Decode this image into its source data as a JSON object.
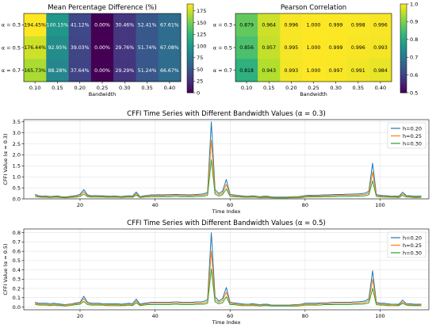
{
  "chart_data": [
    {
      "type": "heatmap",
      "title": "Mean Percentage Difference (%)",
      "xlabel": "Bandwidth",
      "ylabel": "",
      "x_categories": [
        "0.10",
        "0.15",
        "0.20",
        "0.25",
        "0.30",
        "0.35",
        "0.40"
      ],
      "y_categories": [
        "α = 0.3",
        "α = 0.5",
        "α = 0.7"
      ],
      "values": [
        [
          194.45,
          100.15,
          41.12,
          0.0,
          30.46,
          52.41,
          67.61
        ],
        [
          176.44,
          92.95,
          39.03,
          0.0,
          29.76,
          51.74,
          67.08
        ],
        [
          165.73,
          88.28,
          37.64,
          0.0,
          29.29,
          51.24,
          66.67
        ]
      ],
      "cell_labels": [
        [
          "194.45%",
          "100.15%",
          "41.12%",
          "0.00%",
          "30.46%",
          "52.41%",
          "67.61%"
        ],
        [
          "176.44%",
          "92.95%",
          "39.03%",
          "0.00%",
          "29.76%",
          "51.74%",
          "67.08%"
        ],
        [
          "165.73%",
          "88.28%",
          "37.64%",
          "0.00%",
          "29.29%",
          "51.24%",
          "66.67%"
        ]
      ],
      "colorbar": {
        "range": [
          0,
          190
        ],
        "ticks": [
          "0",
          "25",
          "50",
          "75",
          "100",
          "125",
          "150",
          "175"
        ]
      },
      "colormap": "viridis"
    },
    {
      "type": "heatmap",
      "title": "Pearson Correlation",
      "xlabel": "Bandwidth",
      "ylabel": "",
      "x_categories": [
        "0.10",
        "0.15",
        "0.20",
        "0.25",
        "0.30",
        "0.35",
        "0.40"
      ],
      "y_categories": [
        "α = 0.3",
        "α = 0.5",
        "α = 0.7"
      ],
      "values": [
        [
          0.879,
          0.964,
          0.996,
          1.0,
          0.999,
          0.998,
          0.996
        ],
        [
          0.856,
          0.957,
          0.995,
          1.0,
          0.999,
          0.996,
          0.993
        ],
        [
          0.818,
          0.943,
          0.993,
          1.0,
          0.997,
          0.991,
          0.984
        ]
      ],
      "cell_labels": [
        [
          "0.879",
          "0.964",
          "0.996",
          "1.000",
          "0.999",
          "0.998",
          "0.996"
        ],
        [
          "0.856",
          "0.957",
          "0.995",
          "1.000",
          "0.999",
          "0.996",
          "0.993"
        ],
        [
          "0.818",
          "0.943",
          "0.993",
          "1.000",
          "0.997",
          "0.991",
          "0.984"
        ]
      ],
      "colorbar": {
        "range": [
          0.5,
          1.0
        ],
        "ticks": [
          "0.5",
          "0.6",
          "0.7",
          "0.8",
          "0.9",
          "1.0"
        ]
      },
      "colormap": "viridis"
    },
    {
      "type": "line",
      "title": "CFFI Time Series with Different Bandwidth Values (α = 0.3)",
      "xlabel": "Time Index",
      "ylabel": "CFFI Value (α = 0.3)",
      "xlim": [
        5,
        113
      ],
      "ylim": [
        0,
        3.6
      ],
      "x_ticks": [
        20,
        40,
        60,
        80,
        100
      ],
      "y_ticks": [
        0.0,
        0.5,
        1.0,
        1.5,
        2.0,
        2.5,
        3.0,
        3.5
      ],
      "x": [
        8,
        9,
        10,
        11,
        12,
        13,
        14,
        15,
        16,
        17,
        18,
        19,
        20,
        21,
        22,
        23,
        24,
        25,
        26,
        27,
        28,
        29,
        30,
        31,
        32,
        33,
        34,
        35,
        36,
        37,
        38,
        39,
        40,
        41,
        42,
        43,
        44,
        45,
        46,
        47,
        48,
        49,
        50,
        51,
        52,
        53,
        54,
        55,
        56,
        57,
        58,
        59,
        60,
        61,
        62,
        63,
        64,
        65,
        66,
        67,
        68,
        69,
        70,
        71,
        72,
        73,
        74,
        75,
        76,
        77,
        78,
        79,
        80,
        81,
        82,
        83,
        84,
        85,
        86,
        87,
        88,
        89,
        90,
        91,
        92,
        93,
        94,
        95,
        96,
        97,
        98,
        99,
        100,
        101,
        102,
        103,
        104,
        105,
        106,
        107,
        108,
        109,
        110,
        111
      ],
      "legend": "top-right",
      "series": [
        {
          "name": "h=0.20",
          "color": "#1f77b4",
          "values": [
            0.2,
            0.14,
            0.12,
            0.13,
            0.11,
            0.12,
            0.13,
            0.1,
            0.09,
            0.11,
            0.13,
            0.15,
            0.21,
            0.42,
            0.18,
            0.14,
            0.15,
            0.14,
            0.14,
            0.13,
            0.12,
            0.13,
            0.12,
            0.11,
            0.13,
            0.14,
            0.13,
            0.31,
            0.1,
            0.14,
            0.16,
            0.18,
            0.18,
            0.19,
            0.18,
            0.19,
            0.19,
            0.2,
            0.2,
            0.19,
            0.19,
            0.18,
            0.19,
            0.2,
            0.21,
            0.23,
            0.3,
            3.5,
            0.42,
            0.25,
            0.35,
            0.88,
            0.2,
            0.18,
            0.16,
            0.14,
            0.12,
            0.12,
            0.14,
            0.12,
            0.1,
            0.12,
            0.12,
            0.09,
            0.08,
            0.08,
            0.08,
            0.08,
            0.09,
            0.1,
            0.1,
            0.12,
            0.15,
            0.16,
            0.16,
            0.16,
            0.17,
            0.18,
            0.18,
            0.19,
            0.2,
            0.2,
            0.2,
            0.21,
            0.21,
            0.22,
            0.22,
            0.24,
            0.26,
            0.35,
            1.62,
            0.2,
            0.16,
            0.15,
            0.14,
            0.12,
            0.13,
            0.12,
            0.3,
            0.15,
            0.14,
            0.12,
            0.12,
            0.13
          ]
        },
        {
          "name": "h=0.25",
          "color": "#ff7f0e",
          "values": [
            0.16,
            0.11,
            0.1,
            0.1,
            0.09,
            0.1,
            0.1,
            0.08,
            0.07,
            0.09,
            0.1,
            0.12,
            0.16,
            0.32,
            0.14,
            0.11,
            0.12,
            0.11,
            0.11,
            0.1,
            0.1,
            0.1,
            0.1,
            0.09,
            0.1,
            0.11,
            0.1,
            0.24,
            0.08,
            0.11,
            0.13,
            0.14,
            0.14,
            0.15,
            0.14,
            0.15,
            0.15,
            0.16,
            0.16,
            0.15,
            0.15,
            0.14,
            0.15,
            0.16,
            0.16,
            0.18,
            0.23,
            2.65,
            0.32,
            0.19,
            0.27,
            0.66,
            0.16,
            0.14,
            0.13,
            0.11,
            0.1,
            0.1,
            0.11,
            0.1,
            0.08,
            0.09,
            0.09,
            0.07,
            0.06,
            0.06,
            0.06,
            0.06,
            0.07,
            0.08,
            0.08,
            0.09,
            0.12,
            0.12,
            0.13,
            0.13,
            0.13,
            0.14,
            0.14,
            0.15,
            0.15,
            0.16,
            0.16,
            0.16,
            0.16,
            0.17,
            0.17,
            0.19,
            0.2,
            0.27,
            1.22,
            0.16,
            0.12,
            0.12,
            0.11,
            0.1,
            0.1,
            0.09,
            0.23,
            0.12,
            0.11,
            0.09,
            0.09,
            0.1
          ]
        },
        {
          "name": "h=0.30",
          "color": "#2ca02c",
          "values": [
            0.11,
            0.08,
            0.07,
            0.07,
            0.06,
            0.07,
            0.07,
            0.06,
            0.05,
            0.06,
            0.07,
            0.08,
            0.11,
            0.22,
            0.1,
            0.08,
            0.08,
            0.08,
            0.08,
            0.07,
            0.07,
            0.07,
            0.07,
            0.06,
            0.07,
            0.08,
            0.07,
            0.17,
            0.06,
            0.08,
            0.09,
            0.1,
            0.1,
            0.1,
            0.1,
            0.1,
            0.1,
            0.11,
            0.11,
            0.1,
            0.1,
            0.1,
            0.1,
            0.11,
            0.11,
            0.12,
            0.16,
            1.78,
            0.22,
            0.13,
            0.19,
            0.45,
            0.11,
            0.1,
            0.09,
            0.08,
            0.07,
            0.07,
            0.08,
            0.07,
            0.05,
            0.06,
            0.06,
            0.05,
            0.04,
            0.04,
            0.04,
            0.04,
            0.05,
            0.05,
            0.05,
            0.06,
            0.08,
            0.09,
            0.09,
            0.09,
            0.09,
            0.1,
            0.1,
            0.1,
            0.11,
            0.11,
            0.11,
            0.11,
            0.11,
            0.12,
            0.12,
            0.13,
            0.14,
            0.19,
            0.82,
            0.11,
            0.09,
            0.08,
            0.08,
            0.07,
            0.07,
            0.06,
            0.16,
            0.08,
            0.08,
            0.06,
            0.06,
            0.07
          ]
        }
      ]
    },
    {
      "type": "line",
      "title": "CFFI Time Series with Different Bandwidth Values (α = 0.5)",
      "xlabel": "Time Index",
      "ylabel": "CFFI Value (α = 0.5)",
      "xlim": [
        5,
        113
      ],
      "ylim": [
        -0.03,
        0.84
      ],
      "x_ticks": [
        20,
        40,
        60,
        80,
        100
      ],
      "y_ticks": [
        0.0,
        0.1,
        0.2,
        0.3,
        0.4,
        0.5,
        0.6,
        0.7,
        0.8
      ],
      "x": [
        8,
        9,
        10,
        11,
        12,
        13,
        14,
        15,
        16,
        17,
        18,
        19,
        20,
        21,
        22,
        23,
        24,
        25,
        26,
        27,
        28,
        29,
        30,
        31,
        32,
        33,
        34,
        35,
        36,
        37,
        38,
        39,
        40,
        41,
        42,
        43,
        44,
        45,
        46,
        47,
        48,
        49,
        50,
        51,
        52,
        53,
        54,
        55,
        56,
        57,
        58,
        59,
        60,
        61,
        62,
        63,
        64,
        65,
        66,
        67,
        68,
        69,
        70,
        71,
        72,
        73,
        74,
        75,
        76,
        77,
        78,
        79,
        80,
        81,
        82,
        83,
        84,
        85,
        86,
        87,
        88,
        89,
        90,
        91,
        92,
        93,
        94,
        95,
        96,
        97,
        98,
        99,
        100,
        101,
        102,
        103,
        104,
        105,
        106,
        107,
        108,
        109,
        110,
        111
      ],
      "legend": "top-right",
      "series": [
        {
          "name": "h=0.20",
          "color": "#1f77b4",
          "values": [
            0.05,
            0.04,
            0.04,
            0.04,
            0.035,
            0.04,
            0.035,
            0.03,
            0.025,
            0.03,
            0.035,
            0.045,
            0.05,
            0.115,
            0.05,
            0.04,
            0.04,
            0.04,
            0.035,
            0.035,
            0.035,
            0.035,
            0.035,
            0.03,
            0.035,
            0.04,
            0.035,
            0.085,
            0.03,
            0.04,
            0.045,
            0.05,
            0.05,
            0.05,
            0.05,
            0.05,
            0.05,
            0.055,
            0.055,
            0.05,
            0.05,
            0.05,
            0.05,
            0.055,
            0.055,
            0.06,
            0.08,
            0.8,
            0.11,
            0.065,
            0.09,
            0.21,
            0.05,
            0.045,
            0.04,
            0.035,
            0.03,
            0.03,
            0.035,
            0.03,
            0.025,
            0.03,
            0.03,
            0.02,
            0.02,
            0.02,
            0.02,
            0.02,
            0.02,
            0.025,
            0.025,
            0.03,
            0.04,
            0.04,
            0.04,
            0.04,
            0.045,
            0.045,
            0.045,
            0.05,
            0.05,
            0.05,
            0.05,
            0.05,
            0.05,
            0.055,
            0.055,
            0.06,
            0.065,
            0.09,
            0.39,
            0.05,
            0.04,
            0.04,
            0.035,
            0.03,
            0.03,
            0.03,
            0.075,
            0.035,
            0.035,
            0.03,
            0.03,
            0.03
          ]
        },
        {
          "name": "h=0.25",
          "color": "#ff7f0e",
          "values": [
            0.04,
            0.03,
            0.03,
            0.03,
            0.025,
            0.03,
            0.025,
            0.02,
            0.02,
            0.025,
            0.03,
            0.035,
            0.04,
            0.09,
            0.04,
            0.03,
            0.03,
            0.03,
            0.03,
            0.025,
            0.025,
            0.025,
            0.025,
            0.02,
            0.025,
            0.03,
            0.025,
            0.065,
            0.02,
            0.03,
            0.035,
            0.04,
            0.04,
            0.04,
            0.04,
            0.04,
            0.04,
            0.04,
            0.04,
            0.04,
            0.04,
            0.04,
            0.04,
            0.04,
            0.04,
            0.045,
            0.06,
            0.6,
            0.08,
            0.05,
            0.07,
            0.16,
            0.04,
            0.035,
            0.03,
            0.025,
            0.025,
            0.025,
            0.025,
            0.02,
            0.02,
            0.02,
            0.02,
            0.015,
            0.015,
            0.015,
            0.015,
            0.015,
            0.015,
            0.02,
            0.02,
            0.025,
            0.03,
            0.03,
            0.03,
            0.03,
            0.035,
            0.035,
            0.035,
            0.035,
            0.04,
            0.04,
            0.04,
            0.04,
            0.04,
            0.04,
            0.04,
            0.045,
            0.05,
            0.07,
            0.3,
            0.04,
            0.03,
            0.03,
            0.025,
            0.025,
            0.025,
            0.02,
            0.055,
            0.03,
            0.025,
            0.02,
            0.02,
            0.025
          ]
        },
        {
          "name": "h=0.30",
          "color": "#2ca02c",
          "values": [
            0.03,
            0.02,
            0.02,
            0.02,
            0.015,
            0.02,
            0.015,
            0.015,
            0.01,
            0.015,
            0.02,
            0.025,
            0.03,
            0.06,
            0.025,
            0.02,
            0.02,
            0.02,
            0.02,
            0.015,
            0.015,
            0.015,
            0.015,
            0.015,
            0.015,
            0.02,
            0.015,
            0.045,
            0.015,
            0.02,
            0.025,
            0.025,
            0.025,
            0.025,
            0.025,
            0.025,
            0.025,
            0.03,
            0.03,
            0.025,
            0.025,
            0.025,
            0.025,
            0.03,
            0.03,
            0.03,
            0.04,
            0.41,
            0.055,
            0.035,
            0.045,
            0.11,
            0.025,
            0.025,
            0.02,
            0.015,
            0.015,
            0.015,
            0.015,
            0.015,
            0.01,
            0.015,
            0.015,
            0.01,
            0.01,
            0.01,
            0.01,
            0.01,
            0.01,
            0.01,
            0.01,
            0.015,
            0.02,
            0.02,
            0.02,
            0.02,
            0.02,
            0.025,
            0.025,
            0.025,
            0.025,
            0.025,
            0.025,
            0.025,
            0.025,
            0.03,
            0.03,
            0.03,
            0.035,
            0.045,
            0.2,
            0.025,
            0.02,
            0.02,
            0.015,
            0.015,
            0.015,
            0.015,
            0.04,
            0.02,
            0.015,
            0.015,
            0.015,
            0.015
          ]
        }
      ]
    }
  ]
}
